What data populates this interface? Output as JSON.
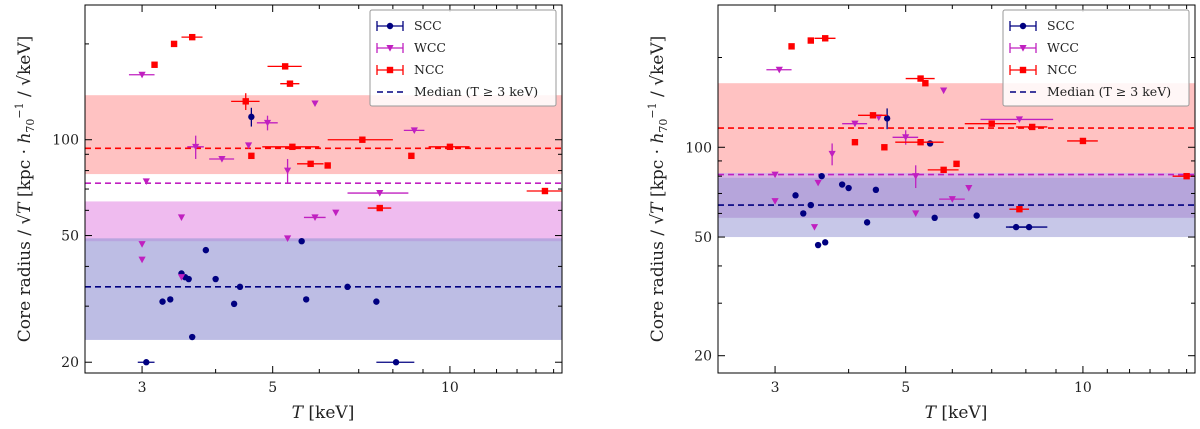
{
  "chart_data": [
    {
      "type": "scatter",
      "panel": "left",
      "xlabel": "T [keV]",
      "ylabel": "Core radius / √T [kpc · h70⁻¹ / √keV]",
      "xscale": "log",
      "yscale": "log",
      "xlim": [
        2.4,
        15.5
      ],
      "ylim": [
        18.5,
        265
      ],
      "xticks": [
        3,
        5,
        10
      ],
      "xtick_labels": [
        "3",
        "5",
        "10"
      ],
      "yticks": [
        20,
        50,
        100
      ],
      "ytick_labels": [
        "20",
        "50",
        "100"
      ],
      "legend_position": "top-right",
      "legend": [
        "SCC",
        "WCC",
        "NCC",
        "Median (T ≥ 3 keV)"
      ],
      "bands": [
        {
          "group": "NCC",
          "low": 78,
          "high": 138,
          "color": "#ff9999",
          "opacity": 0.6
        },
        {
          "group": "WCC",
          "low": 48,
          "high": 64,
          "color": "#e89ee8",
          "opacity": 0.7
        },
        {
          "group": "SCC",
          "low": 23.5,
          "high": 49,
          "color": "#9999d6",
          "opacity": 0.65
        }
      ],
      "medians": [
        {
          "group": "NCC",
          "value": 94,
          "color": "#ff0000"
        },
        {
          "group": "WCC",
          "value": 73,
          "color": "#c020c0"
        },
        {
          "group": "SCC",
          "value": 34.5,
          "color": "#000080"
        }
      ],
      "series": [
        {
          "name": "SCC",
          "color": "#000080",
          "marker": "circle",
          "points": [
            {
              "x": 3.05,
              "y": 20,
              "xerr": 0.1
            },
            {
              "x": 3.25,
              "y": 31
            },
            {
              "x": 3.35,
              "y": 31.5
            },
            {
              "x": 3.5,
              "y": 38
            },
            {
              "x": 3.55,
              "y": 37
            },
            {
              "x": 3.6,
              "y": 36.5
            },
            {
              "x": 3.65,
              "y": 24
            },
            {
              "x": 3.85,
              "y": 45
            },
            {
              "x": 4.0,
              "y": 36.5
            },
            {
              "x": 4.3,
              "y": 30.5
            },
            {
              "x": 4.4,
              "y": 34.5
            },
            {
              "x": 4.6,
              "y": 118,
              "yerr": 8
            },
            {
              "x": 5.6,
              "y": 48
            },
            {
              "x": 5.7,
              "y": 31.5
            },
            {
              "x": 6.7,
              "y": 34.5
            },
            {
              "x": 7.5,
              "y": 31
            },
            {
              "x": 8.1,
              "y": 20,
              "xerr": 0.6
            }
          ]
        },
        {
          "name": "WCC",
          "color": "#c020c0",
          "marker": "triangle-down",
          "points": [
            {
              "x": 3.0,
              "y": 160,
              "xerr": 0.15
            },
            {
              "x": 3.0,
              "y": 47
            },
            {
              "x": 3.0,
              "y": 42
            },
            {
              "x": 3.05,
              "y": 74
            },
            {
              "x": 3.5,
              "y": 37
            },
            {
              "x": 3.5,
              "y": 57
            },
            {
              "x": 3.7,
              "y": 95,
              "yerr": 8,
              "xerr": 0.12
            },
            {
              "x": 4.1,
              "y": 87,
              "xerr": 0.2
            },
            {
              "x": 4.55,
              "y": 96
            },
            {
              "x": 4.9,
              "y": 113,
              "xerr": 0.2,
              "yerr": 6
            },
            {
              "x": 5.3,
              "y": 80,
              "yerr": 7
            },
            {
              "x": 5.3,
              "y": 49
            },
            {
              "x": 5.9,
              "y": 130
            },
            {
              "x": 5.9,
              "y": 57,
              "xerr": 0.25
            },
            {
              "x": 6.4,
              "y": 59
            },
            {
              "x": 7.6,
              "y": 68,
              "xerr": 0.9
            },
            {
              "x": 8.7,
              "y": 107,
              "xerr": 0.35
            }
          ]
        },
        {
          "name": "NCC",
          "color": "#ff0000",
          "marker": "square",
          "points": [
            {
              "x": 3.15,
              "y": 172
            },
            {
              "x": 3.4,
              "y": 200
            },
            {
              "x": 3.65,
              "y": 210,
              "xerr": 0.15
            },
            {
              "x": 4.5,
              "y": 132,
              "xerr": 0.25,
              "yerr": 8
            },
            {
              "x": 4.6,
              "y": 89
            },
            {
              "x": 5.25,
              "y": 170,
              "xerr": 0.35
            },
            {
              "x": 5.35,
              "y": 150,
              "xerr": 0.2
            },
            {
              "x": 5.4,
              "y": 95,
              "xerr": 0.6
            },
            {
              "x": 5.8,
              "y": 84,
              "xerr": 0.3
            },
            {
              "x": 6.2,
              "y": 83
            },
            {
              "x": 7.1,
              "y": 100,
              "xerr": 0.9
            },
            {
              "x": 7.6,
              "y": 61,
              "xerr": 0.35
            },
            {
              "x": 8.6,
              "y": 89
            },
            {
              "x": 10.0,
              "y": 95,
              "xerr": 0.8
            },
            {
              "x": 14.5,
              "y": 69,
              "xerr": 1.0
            }
          ]
        }
      ]
    },
    {
      "type": "scatter",
      "panel": "right",
      "xlabel": "T [keV]",
      "ylabel": "Core radius / √T [kpc · h70⁻¹ / √keV]",
      "xscale": "log",
      "yscale": "log",
      "xlim": [
        2.4,
        15.5
      ],
      "ylim": [
        17.5,
        300
      ],
      "xticks": [
        3,
        5,
        10
      ],
      "xtick_labels": [
        "3",
        "5",
        "10"
      ],
      "yticks": [
        20,
        50,
        100
      ],
      "ytick_labels": [
        "20",
        "50",
        "100"
      ],
      "legend_position": "top-right",
      "legend": [
        "SCC",
        "WCC",
        "NCC",
        "Median (T ≥ 3 keV)"
      ],
      "bands": [
        {
          "group": "NCC",
          "low": 82,
          "high": 164,
          "color": "#ff9999",
          "opacity": 0.6
        },
        {
          "group": "WCC",
          "low": 58,
          "high": 82,
          "color": "#c080d0",
          "opacity": 0.6
        },
        {
          "group": "SCC",
          "low": 50,
          "high": 79,
          "color": "#9999d6",
          "opacity": 0.55
        }
      ],
      "medians": [
        {
          "group": "NCC",
          "value": 116,
          "color": "#ff0000"
        },
        {
          "group": "WCC",
          "value": 81,
          "color": "#c020c0"
        },
        {
          "group": "SCC",
          "value": 64,
          "color": "#000080"
        }
      ],
      "series": [
        {
          "name": "SCC",
          "color": "#000080",
          "marker": "circle",
          "points": [
            {
              "x": 3.25,
              "y": 69
            },
            {
              "x": 3.35,
              "y": 60
            },
            {
              "x": 3.45,
              "y": 64
            },
            {
              "x": 3.55,
              "y": 47
            },
            {
              "x": 3.6,
              "y": 80
            },
            {
              "x": 3.65,
              "y": 48
            },
            {
              "x": 3.9,
              "y": 75
            },
            {
              "x": 4.0,
              "y": 73
            },
            {
              "x": 4.3,
              "y": 56
            },
            {
              "x": 4.45,
              "y": 72
            },
            {
              "x": 4.65,
              "y": 125,
              "yerr": 10
            },
            {
              "x": 5.5,
              "y": 103
            },
            {
              "x": 5.6,
              "y": 58
            },
            {
              "x": 6.6,
              "y": 59
            },
            {
              "x": 7.7,
              "y": 54,
              "xerr": 0.3
            },
            {
              "x": 8.1,
              "y": 54,
              "xerr": 0.6
            }
          ]
        },
        {
          "name": "WCC",
          "color": "#c020c0",
          "marker": "triangle-down",
          "points": [
            {
              "x": 3.05,
              "y": 182,
              "xerr": 0.15
            },
            {
              "x": 3.0,
              "y": 81
            },
            {
              "x": 3.0,
              "y": 66
            },
            {
              "x": 3.5,
              "y": 54
            },
            {
              "x": 3.55,
              "y": 76
            },
            {
              "x": 3.75,
              "y": 95,
              "yerr": 8
            },
            {
              "x": 4.1,
              "y": 120,
              "xerr": 0.2
            },
            {
              "x": 4.5,
              "y": 126
            },
            {
              "x": 5.0,
              "y": 108,
              "xerr": 0.25,
              "yerr": 6
            },
            {
              "x": 5.2,
              "y": 80,
              "yerr": 7
            },
            {
              "x": 5.2,
              "y": 60
            },
            {
              "x": 5.8,
              "y": 155
            },
            {
              "x": 6.0,
              "y": 67,
              "xerr": 0.3
            },
            {
              "x": 6.4,
              "y": 73
            },
            {
              "x": 7.8,
              "y": 124,
              "xerr": 1.1
            }
          ]
        },
        {
          "name": "NCC",
          "color": "#ff0000",
          "marker": "square",
          "points": [
            {
              "x": 3.2,
              "y": 218
            },
            {
              "x": 3.45,
              "y": 228
            },
            {
              "x": 3.65,
              "y": 232,
              "xerr": 0.15
            },
            {
              "x": 4.1,
              "y": 104
            },
            {
              "x": 4.4,
              "y": 128,
              "xerr": 0.25
            },
            {
              "x": 4.6,
              "y": 100
            },
            {
              "x": 5.3,
              "y": 170,
              "xerr": 0.3
            },
            {
              "x": 5.4,
              "y": 164
            },
            {
              "x": 5.3,
              "y": 104,
              "xerr": 0.5
            },
            {
              "x": 5.8,
              "y": 84,
              "xerr": 0.35
            },
            {
              "x": 6.1,
              "y": 88
            },
            {
              "x": 7.0,
              "y": 120,
              "xerr": 0.7
            },
            {
              "x": 7.8,
              "y": 62,
              "xerr": 0.3
            },
            {
              "x": 8.2,
              "y": 117,
              "xerr": 0.5
            },
            {
              "x": 10.0,
              "y": 105,
              "xerr": 0.6
            },
            {
              "x": 15.0,
              "y": 80,
              "xerr": 0.8
            }
          ]
        }
      ]
    }
  ]
}
